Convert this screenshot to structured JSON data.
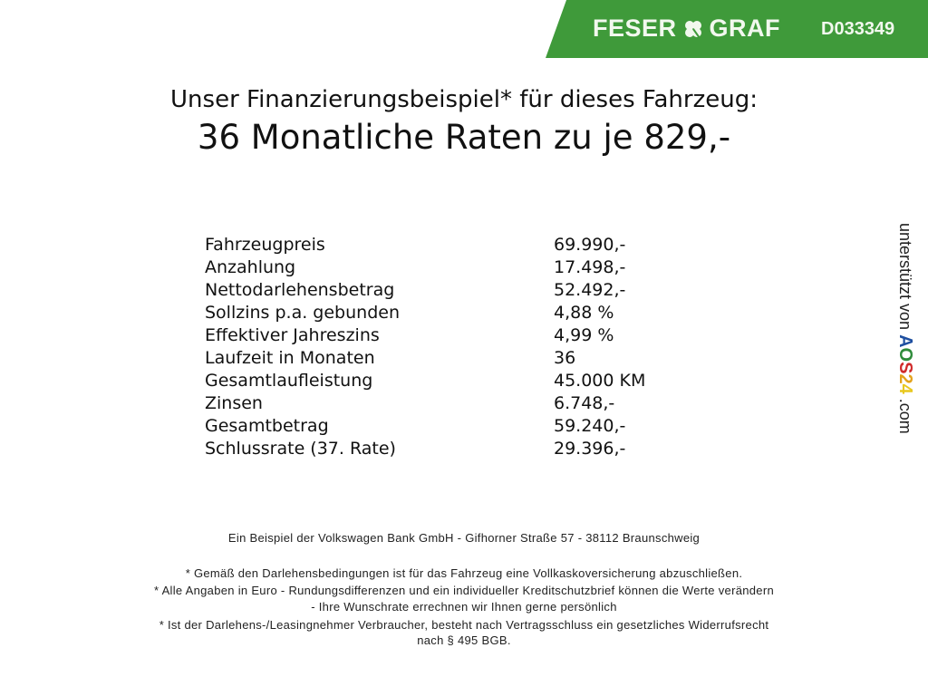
{
  "header": {
    "brand_left": "FESER",
    "brand_right": "GRAF",
    "logo_icon": "clover-icon",
    "code": "D033349",
    "color": "#3f9a3a"
  },
  "title": {
    "line1": "Unser Finanzierungsbeispiel* für dieses Fahrzeug:",
    "line2": "36 Monatliche Raten zu je 829,-"
  },
  "rows": [
    {
      "label": "Fahrzeugpreis",
      "value": "69.990,-"
    },
    {
      "label": "Anzahlung",
      "value": "17.498,-"
    },
    {
      "label": "Nettodarlehensbetrag",
      "value": "52.492,-"
    },
    {
      "label": "Sollzins p.a. gebunden",
      "value": "4,88 %"
    },
    {
      "label": "Effektiver Jahreszins",
      "value": "4,99 %"
    },
    {
      "label": "Laufzeit in Monaten",
      "value": "36"
    },
    {
      "label": "Gesamtlaufleistung",
      "value": "45.000 KM"
    },
    {
      "label": "Zinsen",
      "value": "6.748,-"
    },
    {
      "label": "Gesamtbetrag",
      "value": "59.240,-"
    },
    {
      "label": "Schlussrate (37. Rate)",
      "value": "29.396,-"
    }
  ],
  "side": {
    "prefix": "unterstützt von",
    "logo": [
      "A",
      "O",
      "S",
      "2",
      "4"
    ],
    "suffix": ".com"
  },
  "footer": {
    "bank": "Ein Beispiel der Volkswagen Bank GmbH - Gifhorner Straße 57 - 38112 Braunschweig",
    "notes": [
      "* Gemäß den Darlehensbedingungen ist für das Fahrzeug eine Vollkaskoversicherung abzuschließen.",
      "* Alle Angaben in Euro - Rundungsdifferenzen und ein individueller Kreditschutzbrief können die Werte verändern",
      "- Ihre Wunschrate errechnen wir Ihnen gerne persönlich",
      "* Ist der Darlehens-/Leasingnehmer Verbraucher, besteht nach Vertragsschluss ein gesetzliches Widerrufsrecht",
      "nach § 495 BGB."
    ]
  }
}
